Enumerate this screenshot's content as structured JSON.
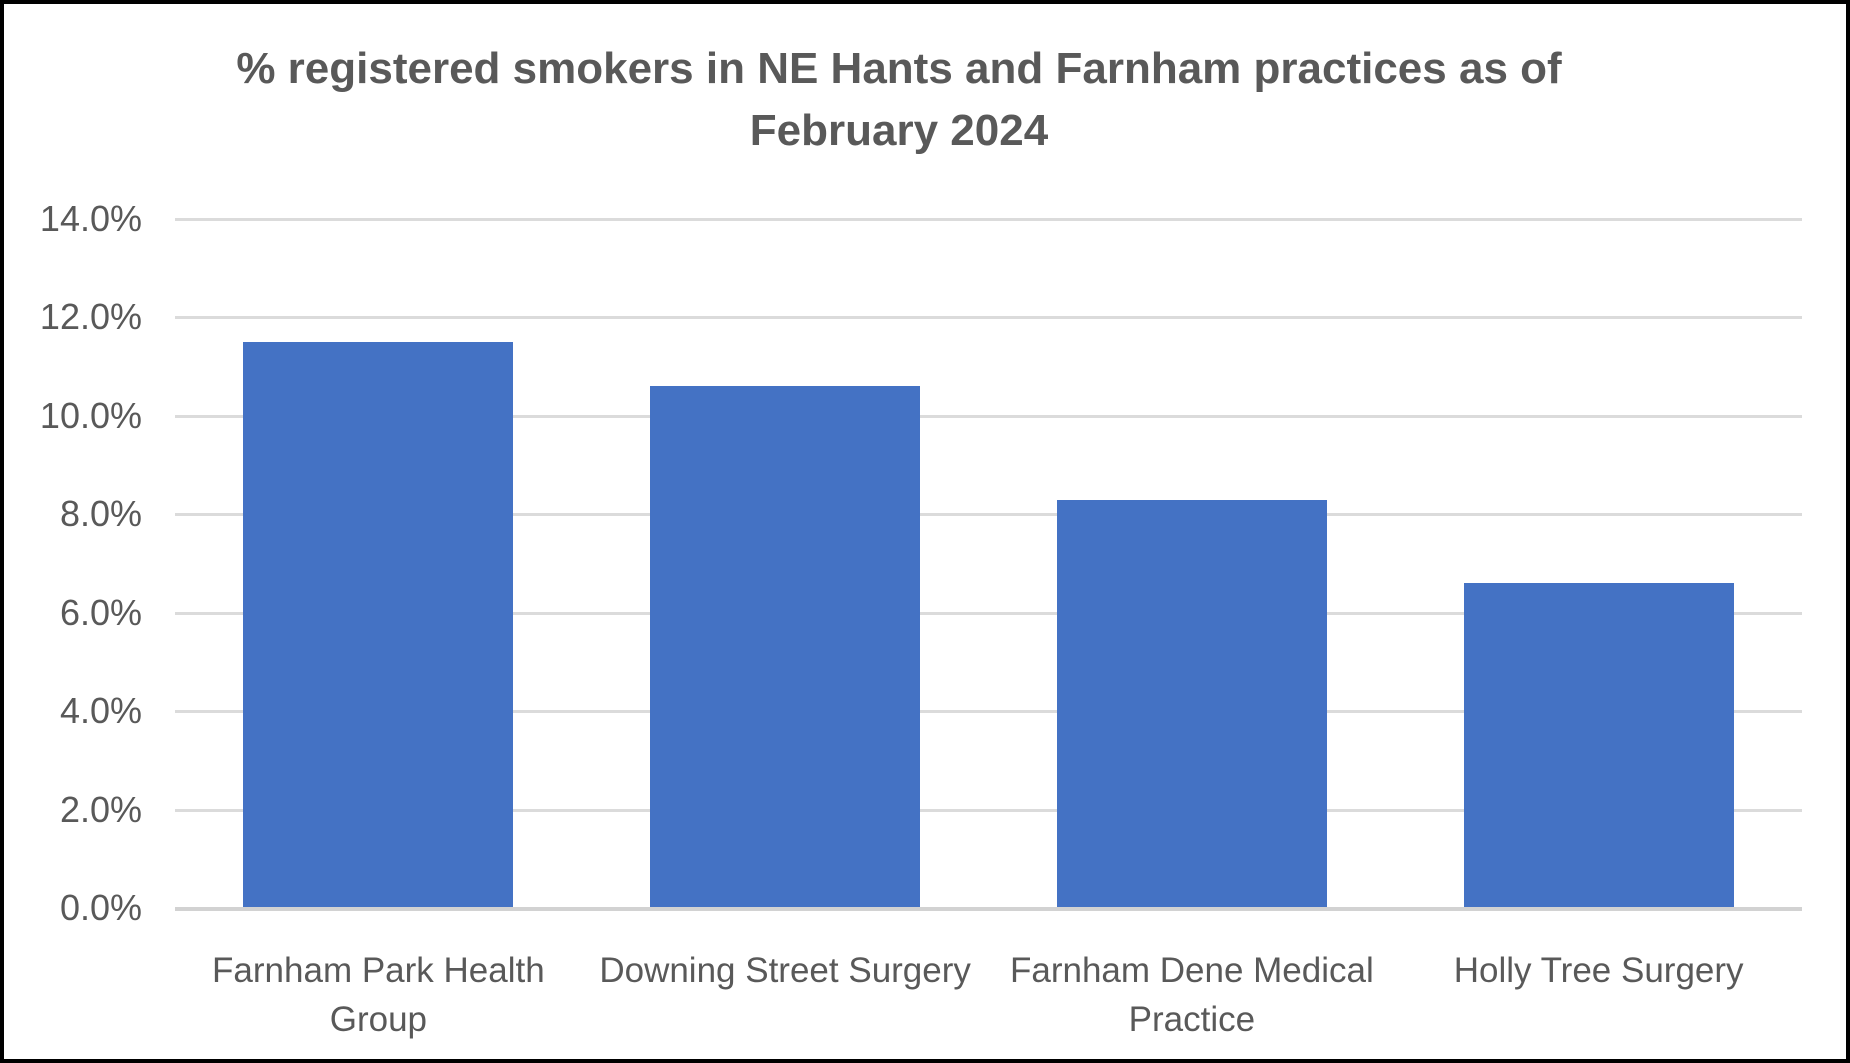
{
  "chart_data": {
    "type": "bar",
    "title": "% registered smokers in NE Hants and Farnham practices as of February 2024",
    "title_lines": [
      "% registered smokers in NE Hants and Farnham practices as of",
      "February 2024"
    ],
    "categories": [
      "Farnham Park Health Group",
      "Downing Street Surgery",
      "Farnham Dene Medical Practice",
      "Holly Tree Surgery"
    ],
    "category_label_lines": [
      [
        "Farnham Park Health",
        "Group"
      ],
      [
        "Downing Street Surgery"
      ],
      [
        "Farnham Dene Medical",
        "Practice"
      ],
      [
        "Holly Tree Surgery"
      ]
    ],
    "values": [
      11.5,
      10.6,
      8.3,
      6.6
    ],
    "unit": "%",
    "xlabel": "",
    "ylabel": "",
    "ylim": [
      0,
      14
    ],
    "ytick_step": 2,
    "ytick_labels": [
      "0.0%",
      "2.0%",
      "4.0%",
      "6.0%",
      "8.0%",
      "10.0%",
      "12.0%",
      "14.0%"
    ],
    "grid": true,
    "legend": false,
    "colors": {
      "bar": "#4472C4",
      "gridline": "#DBDBDB",
      "axis_line": "#D2D2D2",
      "text": "#595959"
    }
  }
}
